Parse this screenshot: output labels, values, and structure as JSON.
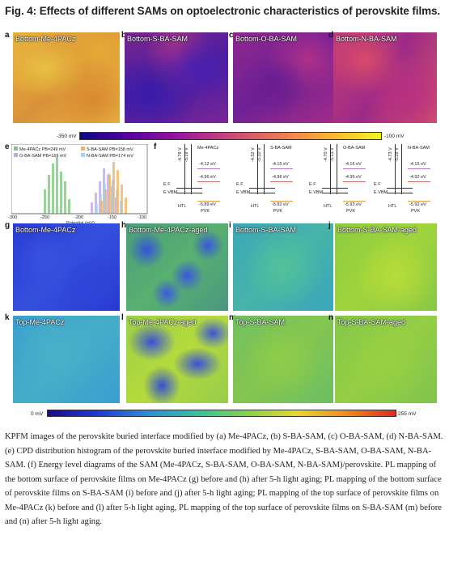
{
  "figure": {
    "title": "Fig. 4: Effects of different SAMs on optoelectronic characteristics of perovskite films.",
    "kpfm_panels": [
      {
        "letter": "a",
        "label": "Bottom-Me-4PACz"
      },
      {
        "letter": "b",
        "label": "Bottom-S-BA-SAM"
      },
      {
        "letter": "c",
        "label": "Bottom-O-BA-SAM"
      },
      {
        "letter": "d",
        "label": "Bottom-N-BA-SAM"
      }
    ],
    "kpfm_colorbar": {
      "min": "-350 mV",
      "max": "-100 mV"
    },
    "histogram": {
      "letter": "e",
      "legend": [
        "Me-4PACz PB=249 mV",
        "S-BA-SAM PB=158 mV",
        "O-BA-SAM PB=169 mV",
        "N-BA-SAM PB=174 mV"
      ],
      "xlabel": "Potential (mV)",
      "ticks": [
        "-300",
        "-250",
        "-200",
        "-150",
        "-100"
      ]
    },
    "energy": {
      "letter": "f",
      "diagrams": [
        {
          "name": "Me-4PACz",
          "vac1": "-4.79 V",
          "vac2": "-5.19 V",
          "cbm": "-4.12 eV",
          "ef": "-4.96 eV",
          "vbm": "-5.89 eV"
        },
        {
          "name": "S-BA-SAM",
          "vac1": "-4.52 V",
          "vac2": "-5.10 V",
          "cbm": "-4.15 eV",
          "ef": "-4.96 eV",
          "vbm": "-5.92 eV"
        },
        {
          "name": "O-BA-SAM",
          "vac1": "-4.70 V",
          "vac2": "-5.13 V",
          "cbm": "-4.16 eV",
          "ef": "-4.95 eV",
          "vbm": "-5.93 eV"
        },
        {
          "name": "N-BA-SAM",
          "vac1": "-4.73 V",
          "vac2": "-5.29 V",
          "cbm": "-4.15 eV",
          "ef": "-4.92 eV",
          "vbm": "-5.92 eV"
        }
      ],
      "htl": "HTL",
      "pvk": "PVK",
      "ef": "E F",
      "evbm": "E VBM"
    },
    "pl_panels": [
      {
        "letter": "g",
        "label": "Bottom-Me-4PACz"
      },
      {
        "letter": "h",
        "label": "Bottom-Me-4PACz-aged"
      },
      {
        "letter": "i",
        "label": "Bottom-S-BA-SAM"
      },
      {
        "letter": "j",
        "label": "Bottom-S-BA-SAM-aged"
      },
      {
        "letter": "k",
        "label": "Top-Me-4PACz"
      },
      {
        "letter": "l",
        "label": "Top-Me-4PACz-aged"
      },
      {
        "letter": "m",
        "label": "Top-S-BA-SAM"
      },
      {
        "letter": "n",
        "label": "Top-S-BA-SAM-aged"
      }
    ],
    "pl_colorbar": {
      "min": "0 mV",
      "max": "255 mV"
    }
  },
  "caption": "KPFM images of the perovskite buried interface modified by (a) Me-4PACz, (b) S-BA-SAM, (c) O-BA-SAM, (d) N-BA-SAM. (e) CPD distribution histogram of the perovskite buried interface modified by Me-4PACz, S-BA-SAM, O-BA-SAM, N-BA-SAM. (f) Energy level diagrams of the SAM (Me-4PACz, S-BA-SAM, O-BA-SAM, N-BA-SAM)/perovskite. PL mapping of the bottom surface of perovskite films on Me-4PACz (g) before and (h) after 5-h light aging; PL mapping of the bottom surface of perovskite films on S-BA-SAM (i) before and (j) after 5-h light aging; PL mapping of the top surface of perovskite films on Me-4PACz (k) before and (l) after 5-h light aging, PL mapping of the top surface of perovskite films on S-BA-SAM (m) before and (n) after 5-h light aging."
}
